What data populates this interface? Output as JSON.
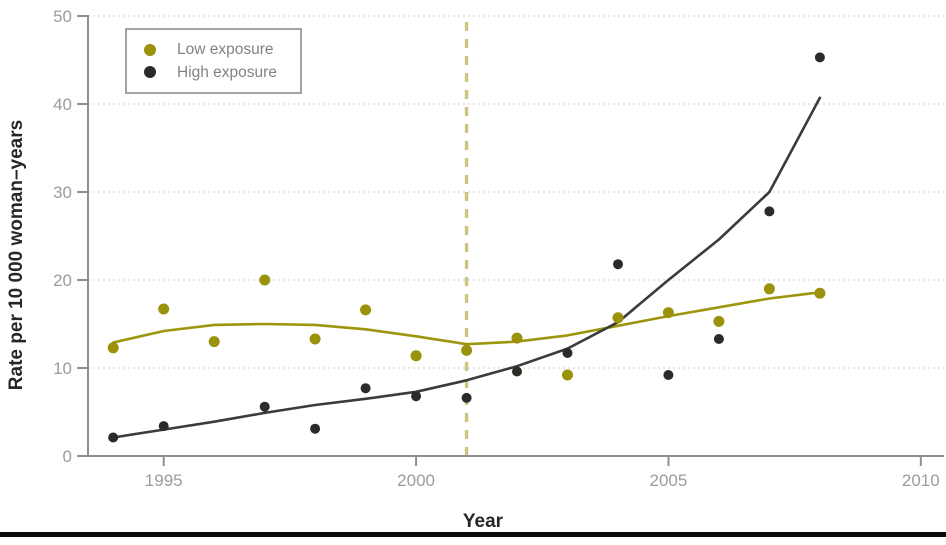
{
  "figure": {
    "xlabel": "Year",
    "ylabel": "Rate per 10 000 woman–years"
  },
  "legend": {
    "items": [
      {
        "label": "Low exposure",
        "color": "#99920a"
      },
      {
        "label": "High exposure",
        "color": "#2d2a27"
      }
    ]
  },
  "colors": {
    "grid": "#dfdfd9",
    "reference_line": "#cdc47f",
    "axis": "#8f8f8f",
    "tick_label": "#9c9c9c",
    "axis_title": "#262626",
    "low": "#99920a",
    "low_line": "#9d960d",
    "high": "#2d2a27",
    "high_line": "#3b3b39",
    "legend_border": "#a3a3a3",
    "legend_text": "#828282",
    "bottom_bar": "#0b0b0b"
  },
  "chart_data": {
    "type": "scatter",
    "title": "",
    "xlabel": "Year",
    "ylabel": "Rate per 10 000 woman–years",
    "xlim": [
      1993.5,
      2010.4
    ],
    "ylim": [
      0,
      50
    ],
    "x_ticks": [
      1995,
      2000,
      2005,
      2010
    ],
    "y_ticks": [
      0,
      10,
      20,
      30,
      40,
      50
    ],
    "grid": "horizontal dotted lines at each y tick",
    "legend_position": "top-left",
    "reference_line": {
      "axis": "x",
      "value": 2001,
      "style": "dashed vertical"
    },
    "series": [
      {
        "name": "Low exposure",
        "type": "scatter-with-smoothed-trend",
        "color": "#99920a",
        "points": [
          [
            1994,
            12.3
          ],
          [
            1995,
            16.7
          ],
          [
            1996,
            13.0
          ],
          [
            1997,
            20.0
          ],
          [
            1998,
            13.3
          ],
          [
            1999,
            16.6
          ],
          [
            2000,
            11.4
          ],
          [
            2001,
            12.0
          ],
          [
            2002,
            13.4
          ],
          [
            2003,
            9.2
          ],
          [
            2004,
            15.7
          ],
          [
            2005,
            16.3
          ],
          [
            2006,
            15.3
          ],
          [
            2007,
            19.0
          ],
          [
            2008,
            18.5
          ]
        ],
        "trend": [
          [
            1994,
            12.9
          ],
          [
            1995,
            14.2
          ],
          [
            1996,
            14.9
          ],
          [
            1997,
            15.0
          ],
          [
            1998,
            14.9
          ],
          [
            1999,
            14.4
          ],
          [
            2000,
            13.6
          ],
          [
            2001,
            12.7
          ],
          [
            2002,
            13.0
          ],
          [
            2003,
            13.7
          ],
          [
            2004,
            14.8
          ],
          [
            2005,
            15.9
          ],
          [
            2006,
            16.9
          ],
          [
            2007,
            17.9
          ],
          [
            2008,
            18.6
          ]
        ]
      },
      {
        "name": "High exposure",
        "type": "scatter-with-smoothed-trend",
        "color": "#2d2a27",
        "points": [
          [
            1994,
            2.1
          ],
          [
            1995,
            3.4
          ],
          [
            1997,
            5.6
          ],
          [
            1998,
            3.1
          ],
          [
            1999,
            7.7
          ],
          [
            2000,
            6.8
          ],
          [
            2001,
            6.6
          ],
          [
            2002,
            9.6
          ],
          [
            2003,
            11.7
          ],
          [
            2004,
            21.8
          ],
          [
            2005,
            9.2
          ],
          [
            2006,
            13.3
          ],
          [
            2007,
            27.8
          ],
          [
            2008,
            45.3
          ]
        ],
        "trend": [
          [
            1994,
            2.1
          ],
          [
            1995,
            3.0
          ],
          [
            1996,
            3.9
          ],
          [
            1997,
            4.9
          ],
          [
            1998,
            5.8
          ],
          [
            1999,
            6.5
          ],
          [
            2000,
            7.3
          ],
          [
            2001,
            8.6
          ],
          [
            2002,
            10.2
          ],
          [
            2003,
            12.2
          ],
          [
            2004,
            15.2
          ],
          [
            2005,
            20.0
          ],
          [
            2006,
            24.6
          ],
          [
            2007,
            30.0
          ],
          [
            2008,
            40.7
          ]
        ]
      }
    ]
  }
}
